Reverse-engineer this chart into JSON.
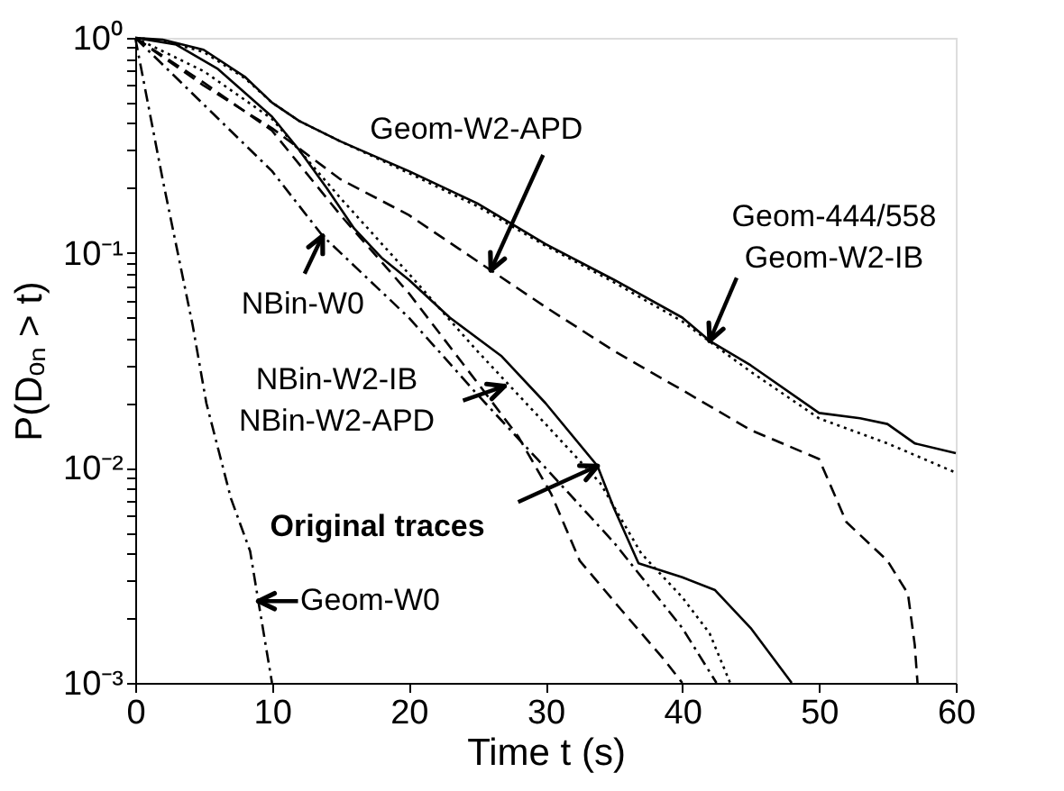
{
  "chart_data": {
    "type": "line",
    "xlabel": "Time t (s)",
    "ylabel": "P(Dₒₙ > t)",
    "log": "y",
    "grid": false,
    "marker": "none",
    "xlim": [
      0,
      60
    ],
    "xticks": [
      0,
      10,
      20,
      30,
      40,
      50,
      60
    ],
    "ylim": [
      0.001,
      1
    ],
    "yticks": [
      {
        "value": 0.001,
        "label": "10⁻³"
      },
      {
        "value": 0.002,
        "label": null
      },
      {
        "value": 0.003,
        "label": null
      },
      {
        "value": 0.004,
        "label": null
      },
      {
        "value": 0.005,
        "label": null
      },
      {
        "value": 0.006,
        "label": null
      },
      {
        "value": 0.007,
        "label": null
      },
      {
        "value": 0.008,
        "label": null
      },
      {
        "value": 0.009,
        "label": null
      },
      {
        "value": 0.01,
        "label": "10⁻²"
      },
      {
        "value": 0.02,
        "label": null
      },
      {
        "value": 0.03,
        "label": null
      },
      {
        "value": 0.04,
        "label": null
      },
      {
        "value": 0.05,
        "label": null
      },
      {
        "value": 0.06,
        "label": null
      },
      {
        "value": 0.07,
        "label": null
      },
      {
        "value": 0.08,
        "label": null
      },
      {
        "value": 0.09,
        "label": null
      },
      {
        "value": 0.1,
        "label": "10⁻¹"
      },
      {
        "value": 0.2,
        "label": null
      },
      {
        "value": 0.3,
        "label": null
      },
      {
        "value": 0.4,
        "label": null
      },
      {
        "value": 0.5,
        "label": null
      },
      {
        "value": 0.6,
        "label": null
      },
      {
        "value": 0.7,
        "label": null
      },
      {
        "value": 0.8,
        "label": null
      },
      {
        "value": 0.9,
        "label": null
      },
      {
        "value": 1,
        "label": "10⁰"
      }
    ],
    "series": [
      {
        "color": "#000000",
        "line_style": "solid",
        "x": [
          0,
          2,
          5,
          8,
          10,
          12,
          15,
          20,
          25,
          30,
          35,
          40,
          42,
          45,
          50,
          53,
          55,
          57,
          60
        ],
        "values": [
          1,
          0.98,
          0.88,
          0.66,
          0.5,
          0.41,
          0.33,
          0.24,
          0.17,
          0.11,
          0.075,
          0.05,
          0.039,
          0.03,
          0.018,
          0.017,
          0.016,
          0.013,
          0.0117
        ]
      },
      {
        "color": "#000000",
        "line_style": "dotted",
        "x": [
          0,
          2,
          5,
          8,
          10,
          12,
          15,
          20,
          25,
          30,
          35,
          40,
          45,
          50,
          55,
          60
        ],
        "values": [
          1,
          0.97,
          0.86,
          0.65,
          0.5,
          0.41,
          0.33,
          0.235,
          0.165,
          0.108,
          0.073,
          0.048,
          0.028,
          0.017,
          0.013,
          0.0095
        ]
      },
      {
        "color": "#000000",
        "line_style": "dashed",
        "x": [
          0,
          5,
          10,
          15,
          20,
          26,
          30,
          35,
          40,
          45,
          50,
          52,
          55,
          56.5,
          57,
          57.2
        ],
        "values": [
          1,
          0.6,
          0.38,
          0.22,
          0.15,
          0.083,
          0.056,
          0.035,
          0.023,
          0.015,
          0.011,
          0.0056,
          0.0037,
          0.0026,
          0.0015,
          0.001
        ]
      },
      {
        "color": "#000000",
        "line_style": "solid",
        "x": [
          0,
          3,
          6,
          10,
          12,
          14,
          16,
          18,
          20,
          23,
          26.8,
          30,
          33.8,
          35,
          36.8,
          40,
          42.4,
          45,
          48
        ],
        "values": [
          1,
          0.93,
          0.72,
          0.43,
          0.3,
          0.2,
          0.13,
          0.095,
          0.075,
          0.05,
          0.033,
          0.02,
          0.0102,
          0.0065,
          0.0036,
          0.0031,
          0.0027,
          0.0018,
          0.001
        ]
      },
      {
        "color": "#000000",
        "line_style": "dotted",
        "x": [
          0,
          5,
          10,
          15,
          20,
          25,
          30,
          34,
          37,
          40,
          42,
          43.5
        ],
        "values": [
          1,
          0.7,
          0.42,
          0.18,
          0.08,
          0.035,
          0.016,
          0.0085,
          0.004,
          0.0025,
          0.0017,
          0.001
        ]
      },
      {
        "color": "#000000",
        "line_style": "dashed",
        "x": [
          0,
          5,
          10,
          15,
          20,
          25,
          28,
          30.4,
          32.5,
          35.5,
          38.6,
          40
        ],
        "values": [
          1,
          0.62,
          0.37,
          0.15,
          0.065,
          0.025,
          0.014,
          0.0076,
          0.0037,
          0.0022,
          0.0013,
          0.001
        ]
      },
      {
        "color": "#000000",
        "line_style": "dashdot",
        "x": [
          0,
          5,
          10,
          13.7,
          20,
          25,
          30,
          35,
          40,
          42.5
        ],
        "values": [
          1,
          0.49,
          0.24,
          0.12,
          0.05,
          0.022,
          0.01,
          0.0045,
          0.0018,
          0.001
        ]
      },
      {
        "color": "#000000",
        "line_style": "dashdot",
        "x": [
          0,
          2,
          4.2,
          5.2,
          7,
          8.4,
          9,
          10
        ],
        "values": [
          1,
          0.22,
          0.046,
          0.02,
          0.0072,
          0.0041,
          0.0024,
          0.001
        ]
      }
    ],
    "annotations": [
      {
        "text": "Geom-W2-APD",
        "x": 26,
        "y": 0.083
      },
      {
        "text": "Geom-444/558\nGeom-W2-IB",
        "x": 42,
        "y": 0.039
      },
      {
        "text": "NBin-W0",
        "x": 13.7,
        "y": 0.12
      },
      {
        "text": "NBin-W2-IB\nNBin-W2-APD",
        "x": 27,
        "y": 0.024
      },
      {
        "text": "Original traces",
        "x": 33.8,
        "y": 0.0102
      },
      {
        "text": "Geom-W0",
        "x": 9,
        "y": 0.0024
      }
    ]
  }
}
